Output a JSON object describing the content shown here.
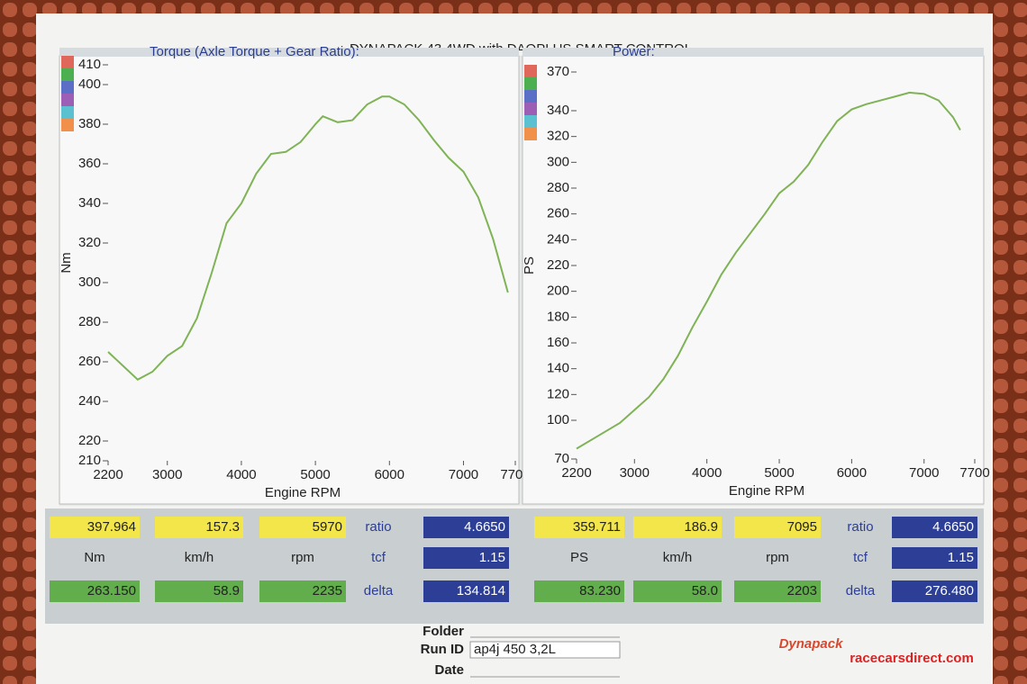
{
  "header": {
    "title": "DYNAPACK 43 4WD with DAQPLUS SMART CONTROL"
  },
  "chart_data": [
    {
      "type": "line",
      "title": "Torque (Axle Torque + Gear Ratio):",
      "xlabel": "Engine RPM",
      "ylabel": "Nm",
      "xlim": [
        2200,
        7700
      ],
      "xticks": [
        2200,
        3000,
        4000,
        5000,
        6000,
        7000,
        7700
      ],
      "ylim": [
        210,
        410
      ],
      "yticks": [
        210,
        220,
        240,
        260,
        280,
        300,
        320,
        340,
        360,
        380,
        400,
        410
      ],
      "grid": false,
      "series": [
        {
          "color": "#7fb356",
          "x": [
            2200,
            2400,
            2600,
            2800,
            3000,
            3200,
            3400,
            3600,
            3800,
            4000,
            4200,
            4400,
            4600,
            4800,
            5000,
            5100,
            5300,
            5500,
            5700,
            5900,
            6000,
            6200,
            6400,
            6600,
            6800,
            7000,
            7200,
            7400,
            7600
          ],
          "values": [
            265,
            258,
            251,
            255,
            263,
            268,
            282,
            305,
            330,
            340,
            355,
            365,
            366,
            371,
            380,
            384,
            381,
            382,
            390,
            394,
            394,
            390,
            382,
            372,
            363,
            356,
            343,
            322,
            295
          ]
        }
      ]
    },
    {
      "type": "line",
      "title": "Power:",
      "xlabel": "Engine RPM",
      "ylabel": "PS",
      "xlim": [
        2200,
        7700
      ],
      "xticks": [
        2200,
        3000,
        4000,
        5000,
        6000,
        7000,
        7700
      ],
      "ylim": [
        70,
        370
      ],
      "yticks": [
        70,
        100,
        120,
        140,
        160,
        180,
        200,
        220,
        240,
        260,
        280,
        300,
        320,
        340,
        370
      ],
      "grid": false,
      "series": [
        {
          "color": "#7fb356",
          "x": [
            2200,
            2500,
            2800,
            3000,
            3200,
            3400,
            3600,
            3800,
            4000,
            4200,
            4400,
            4600,
            4800,
            5000,
            5200,
            5400,
            5600,
            5800,
            6000,
            6200,
            6400,
            6600,
            6800,
            7000,
            7200,
            7400,
            7500
          ],
          "values": [
            78,
            88,
            98,
            108,
            118,
            132,
            150,
            172,
            192,
            213,
            230,
            245,
            260,
            276,
            285,
            298,
            316,
            332,
            341,
            345,
            348,
            351,
            354,
            353,
            348,
            335,
            325
          ]
        }
      ]
    }
  ],
  "readouts": [
    [
      [
        "397.964",
        "157.3",
        "5970",
        "ratio",
        "4.6650"
      ],
      [
        "Nm",
        "km/h",
        "rpm",
        "tcf",
        "1.15"
      ],
      [
        "263.150",
        "58.9",
        "2235",
        "delta",
        "134.814"
      ]
    ],
    [
      [
        "359.711",
        "186.9",
        "7095",
        "ratio",
        "4.6650"
      ],
      [
        "PS",
        "km/h",
        "rpm",
        "tcf",
        "1.15"
      ],
      [
        "83.230",
        "58.0",
        "2203",
        "delta",
        "276.480"
      ]
    ]
  ],
  "footer": {
    "folder_label": "Folder",
    "run_id_label": "Run ID",
    "run_id": "ap4j 450 3,2L",
    "date_label": "Date",
    "logo": "Dynapack",
    "watermark": "racecarsdirect.com"
  }
}
